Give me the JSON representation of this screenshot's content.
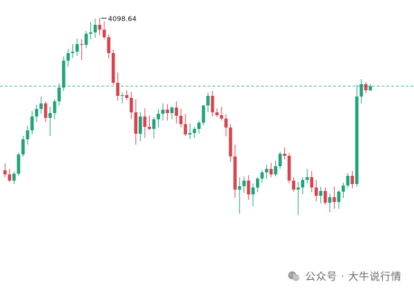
{
  "chart_data": {
    "type": "candlestick",
    "colors": {
      "up": "#1fa37a",
      "down": "#d9434f",
      "reference_line": "#2bb38a",
      "background": "#ffffff"
    },
    "y_scale": "price",
    "ylim": [
      3700,
      4125
    ],
    "grid": false,
    "max_label": "4098.64",
    "max_value": 4098.64,
    "reference_level": 4000,
    "candles": [
      [
        3878,
        3888,
        3868,
        3872
      ],
      [
        3872,
        3880,
        3861,
        3863
      ],
      [
        3863,
        3876,
        3858,
        3873
      ],
      [
        3873,
        3904,
        3870,
        3901
      ],
      [
        3901,
        3928,
        3898,
        3923
      ],
      [
        3923,
        3942,
        3915,
        3936
      ],
      [
        3936,
        3964,
        3930,
        3956
      ],
      [
        3956,
        3973,
        3948,
        3967
      ],
      [
        3967,
        3985,
        3960,
        3975
      ],
      [
        3975,
        3978,
        3948,
        3954
      ],
      [
        3954,
        3970,
        3928,
        3961
      ],
      [
        3961,
        3981,
        3952,
        3978
      ],
      [
        3978,
        4004,
        3972,
        3998
      ],
      [
        3998,
        4043,
        3993,
        4037
      ],
      [
        4037,
        4054,
        4028,
        4048
      ],
      [
        4048,
        4061,
        4041,
        4050
      ],
      [
        4050,
        4069,
        4044,
        4061
      ],
      [
        4061,
        4068,
        4038,
        4060
      ],
      [
        4060,
        4080,
        4055,
        4076
      ],
      [
        4076,
        4093,
        4068,
        4078
      ],
      [
        4078,
        4098,
        4070,
        4089
      ],
      [
        4089,
        4099,
        4074,
        4082
      ],
      [
        4082,
        4094,
        4068,
        4071
      ],
      [
        4071,
        4075,
        4040,
        4048
      ],
      [
        4048,
        4053,
        4002,
        4005
      ],
      [
        4005,
        4020,
        3979,
        3986
      ],
      [
        3986,
        3991,
        3975,
        3987
      ],
      [
        3987,
        3994,
        3980,
        3983
      ],
      [
        3983,
        3992,
        3952,
        3962
      ],
      [
        3962,
        3981,
        3915,
        3931
      ],
      [
        3931,
        3962,
        3920,
        3956
      ],
      [
        3956,
        3968,
        3925,
        3941
      ],
      [
        3941,
        3957,
        3936,
        3938
      ],
      [
        3938,
        3955,
        3924,
        3952
      ],
      [
        3952,
        3967,
        3940,
        3960
      ],
      [
        3960,
        3975,
        3950,
        3966
      ],
      [
        3966,
        3974,
        3950,
        3961
      ],
      [
        3961,
        3971,
        3952,
        3969
      ],
      [
        3969,
        3978,
        3946,
        3957
      ],
      [
        3957,
        3967,
        3940,
        3945
      ],
      [
        3945,
        3960,
        3928,
        3930
      ],
      [
        3930,
        3946,
        3923,
        3932
      ],
      [
        3932,
        3941,
        3925,
        3938
      ],
      [
        3938,
        3950,
        3931,
        3947
      ],
      [
        3947,
        3973,
        3943,
        3972
      ],
      [
        3972,
        3991,
        3962,
        3986
      ],
      [
        3986,
        3993,
        3956,
        3962
      ],
      [
        3962,
        3968,
        3955,
        3958
      ],
      [
        3958,
        3970,
        3950,
        3953
      ],
      [
        3953,
        3959,
        3927,
        3940
      ],
      [
        3940,
        3945,
        3890,
        3898
      ],
      [
        3898,
        3915,
        3838,
        3850
      ],
      [
        3850,
        3868,
        3815,
        3855
      ],
      [
        3855,
        3869,
        3845,
        3863
      ],
      [
        3863,
        3871,
        3835,
        3843
      ],
      [
        3843,
        3859,
        3826,
        3853
      ],
      [
        3853,
        3868,
        3846,
        3866
      ],
      [
        3866,
        3878,
        3860,
        3875
      ],
      [
        3875,
        3886,
        3866,
        3880
      ],
      [
        3880,
        3889,
        3868,
        3872
      ],
      [
        3872,
        3892,
        3869,
        3884
      ],
      [
        3884,
        3905,
        3880,
        3902
      ],
      [
        3902,
        3911,
        3894,
        3899
      ],
      [
        3899,
        3903,
        3859,
        3863
      ],
      [
        3863,
        3868,
        3847,
        3850
      ],
      [
        3850,
        3861,
        3813,
        3853
      ],
      [
        3853,
        3868,
        3843,
        3864
      ],
      [
        3864,
        3880,
        3859,
        3868
      ],
      [
        3868,
        3877,
        3846,
        3853
      ],
      [
        3853,
        3864,
        3833,
        3841
      ],
      [
        3841,
        3854,
        3830,
        3848
      ],
      [
        3848,
        3853,
        3828,
        3831
      ],
      [
        3831,
        3844,
        3817,
        3839
      ],
      [
        3839,
        3854,
        3822,
        3832
      ],
      [
        3832,
        3849,
        3822,
        3847
      ],
      [
        3847,
        3860,
        3838,
        3856
      ],
      [
        3856,
        3874,
        3852,
        3870
      ],
      [
        3870,
        3877,
        3852,
        3858
      ],
      [
        3858,
        4002,
        3854,
        3985
      ],
      [
        3985,
        4010,
        3975,
        4003
      ],
      [
        4003,
        4006,
        3990,
        3994
      ],
      [
        3994,
        4003,
        3993,
        4000
      ]
    ]
  },
  "watermark": {
    "text": "公众号 · 大牛说行情",
    "icon": "wechat-icon"
  }
}
